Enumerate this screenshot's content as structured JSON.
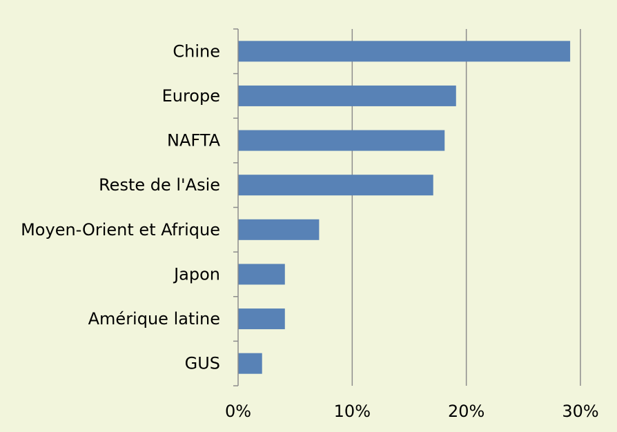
{
  "chart_data": {
    "type": "bar",
    "orientation": "horizontal",
    "categories": [
      "Chine",
      "Europe",
      "NAFTA",
      "Reste de l'Asie",
      "Moyen-Orient et Afrique",
      "Japon",
      "Amérique latine",
      "GUS"
    ],
    "values": [
      29.1,
      19.1,
      18.1,
      17.1,
      7.1,
      4.1,
      4.1,
      2.1
    ],
    "value_unit": "%",
    "xlim": [
      0,
      30
    ],
    "xticks": [
      0,
      10,
      20,
      30
    ],
    "xtick_labels": [
      "0%",
      "10%",
      "20%",
      "30%"
    ],
    "grid": "vertical",
    "legend": "none",
    "colors": {
      "bar": "#5882b6",
      "background": "#f2f5dc",
      "grid": "#8c8c8c"
    }
  }
}
